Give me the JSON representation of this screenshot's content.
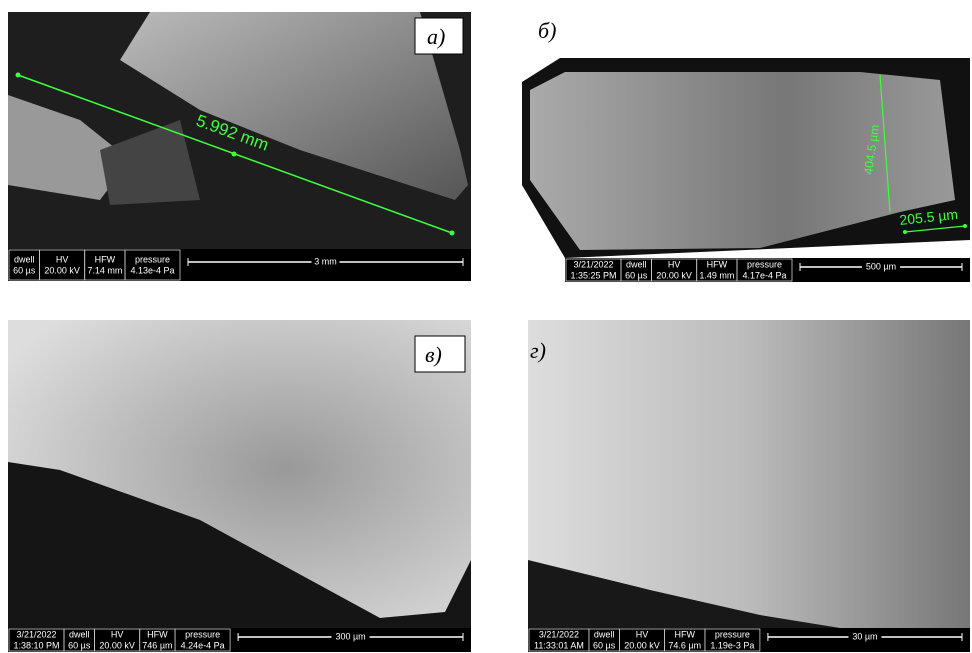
{
  "panels": [
    {
      "label": "а)",
      "measurements": [
        "5.992 mm"
      ],
      "info": {
        "columns": [
          {
            "header": "dwell",
            "value": "60 µs"
          },
          {
            "header": "HV",
            "value": "20.00 kV"
          },
          {
            "header": "HFW",
            "value": "7.14 mm"
          },
          {
            "header": "pressure",
            "value": "4.13e-4 Pa"
          }
        ],
        "scale_bar": "3 mm"
      }
    },
    {
      "label": "б)",
      "measurements": [
        "404.5 µm",
        "205.5 µm"
      ],
      "info": {
        "columns": [
          {
            "header": "3/21/2022",
            "value": "1:35:25 PM"
          },
          {
            "header": "dwell",
            "value": "60 µs"
          },
          {
            "header": "HV",
            "value": "20.00 kV"
          },
          {
            "header": "HFW",
            "value": "1.49 mm"
          },
          {
            "header": "pressure",
            "value": "4.17e-4 Pa"
          }
        ],
        "scale_bar": "500 µm"
      }
    },
    {
      "label": "в)",
      "measurements": [],
      "info": {
        "columns": [
          {
            "header": "3/21/2022",
            "value": "1:38:10 PM"
          },
          {
            "header": "dwell",
            "value": "60 µs"
          },
          {
            "header": "HV",
            "value": "20.00 kV"
          },
          {
            "header": "HFW",
            "value": "746 µm"
          },
          {
            "header": "pressure",
            "value": "4.24e-4 Pa"
          }
        ],
        "scale_bar": "300 µm"
      }
    },
    {
      "label": "г)",
      "measurements": [],
      "info": {
        "columns": [
          {
            "header": "3/21/2022",
            "value": "11:33:01 AM"
          },
          {
            "header": "dwell",
            "value": "60 µs"
          },
          {
            "header": "HV",
            "value": "20.00 kV"
          },
          {
            "header": "HFW",
            "value": "74.6 µm"
          },
          {
            "header": "pressure",
            "value": "1.19e-3 Pa"
          }
        ],
        "scale_bar": "30 µm"
      }
    }
  ]
}
